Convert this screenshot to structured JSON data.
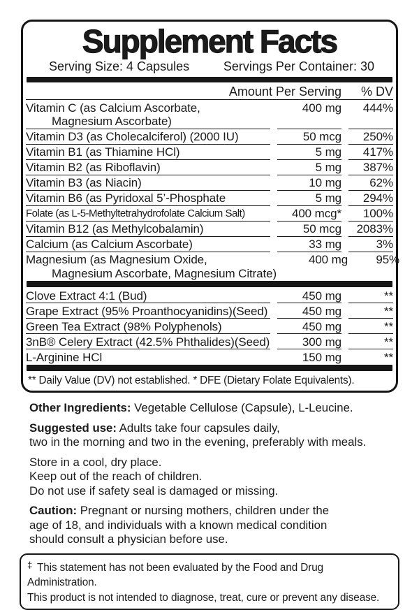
{
  "meta": {
    "ink_color": "#1b1b1b",
    "background_color": "#ffffff"
  },
  "panel": {
    "title": "Supplement Facts",
    "serving_size": "Serving Size: 4 Capsules",
    "servings_per_container": "Servings Per Container: 30",
    "columns": {
      "amount": "Amount Per Serving",
      "dv": "% DV"
    },
    "vitamins": [
      {
        "name": "Vitamin C (as Calcium Ascorbate,",
        "name_line2": "Magnesium Ascorbate)",
        "amount": "400 mg",
        "dv": "444%"
      },
      {
        "name": "Vitamin D3 (as Cholecalciferol) (2000 IU)",
        "amount": "50 mcg",
        "dv": "250%"
      },
      {
        "name": "Vitamin B1 (as Thiamine HCl)",
        "amount": "5 mg",
        "dv": "417%"
      },
      {
        "name": "Vitamin B2 (as Riboflavin)",
        "amount": "5 mg",
        "dv": "387%"
      },
      {
        "name": "Vitamin B3 (as Niacin)",
        "amount": "10 mg",
        "dv": "62%"
      },
      {
        "name": "Vitamin B6 (as Pyridoxal 5’-Phosphate",
        "amount": "5 mg",
        "dv": "294%"
      },
      {
        "name": "Folate (as L-5-Methyltetrahydrofolate Calcium Salt)",
        "amount": "400 mcg*",
        "dv": "100%"
      },
      {
        "name": "Vitamin B12 (as Methylcobalamin)",
        "amount": "50 mcg",
        "dv": "2083%"
      },
      {
        "name": "Calcium (as Calcium Ascorbate)",
        "amount": "33 mg",
        "dv": "3%"
      },
      {
        "name": "Magnesium (as Magnesium Oxide,",
        "name_line2": "Magnesium Ascorbate, Magnesium Citrate)",
        "amount": "400 mg",
        "dv": "95%"
      }
    ],
    "extracts": [
      {
        "name": "Clove Extract 4:1 (Bud)",
        "amount": "450 mg",
        "dv": "**"
      },
      {
        "name": "Grape Extract (95% Proanthocyanidins)(Seed)",
        "amount": "450 mg",
        "dv": "**"
      },
      {
        "name": "Green Tea Extract (98% Polyphenols)",
        "amount": "450 mg",
        "dv": "**"
      },
      {
        "name": "3nB® Celery Extract (42.5% Phthalides)(Seed)",
        "amount": "300 mg",
        "dv": "**"
      },
      {
        "name": "L-Arginine HCl",
        "amount": "150 mg",
        "dv": "**"
      }
    ],
    "footnote": "** Daily Value (DV) not established. * DFE (Dietary Folate Equivalents)."
  },
  "details": {
    "other_ingredients_label": "Other Ingredients:",
    "other_ingredients_text": "Vegetable Cellulose (Capsule), L-Leucine.",
    "suggested_use_label": "Suggested use:",
    "suggested_use_line1": "Adults take four capsules daily,",
    "suggested_use_line2": "two in the morning and two in the evening, preferably with meals.",
    "storage_lines": [
      "Store in a cool, dry place.",
      "Keep out of the reach of children.",
      "Do not use if safety seal is damaged or missing."
    ],
    "caution_label": "Caution:",
    "caution_lines": [
      "Pregnant or nursing mothers, children under the",
      "age of 18, and individuals with a known medical condition",
      "should consult a physician before use."
    ]
  },
  "disclaimer": {
    "symbol": "‡",
    "line1": "This statement has not been evaluated by the Food and Drug Administration.",
    "line2": "This product is not intended to diagnose, treat, cure or prevent any disease."
  }
}
